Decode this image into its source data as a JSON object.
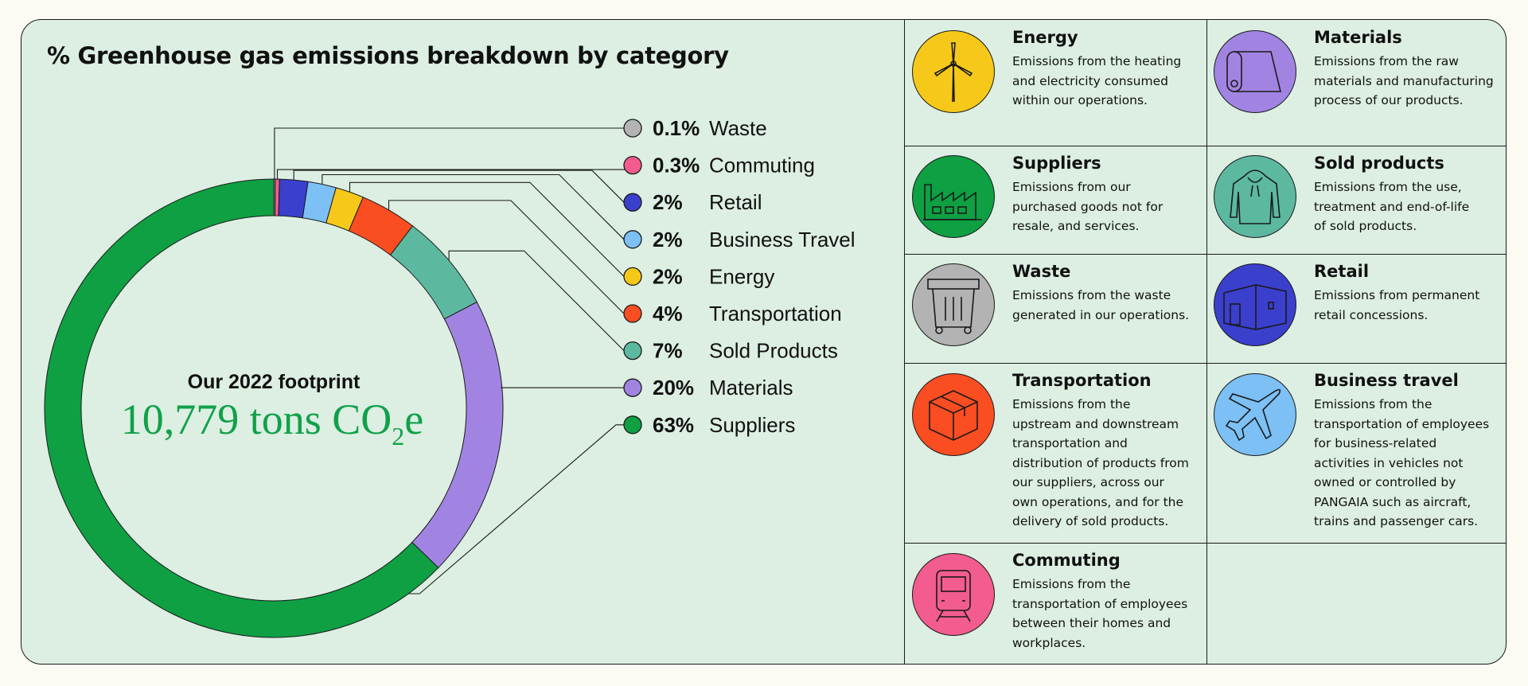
{
  "title": "% Greenhouse gas emissions breakdown by category",
  "center": {
    "label": "Our 2022 footprint",
    "value_main": "10,779 tons CO",
    "value_sub": "2",
    "value_end": "e"
  },
  "chart_data": {
    "type": "pie",
    "title": "% Greenhouse gas emissions breakdown by category",
    "donut": true,
    "slices": [
      {
        "name": "Waste",
        "value": 0.1,
        "label": "0.1%",
        "color": "#b3b3b3"
      },
      {
        "name": "Commuting",
        "value": 0.3,
        "label": "0.3%",
        "color": "#f25c8e"
      },
      {
        "name": "Retail",
        "value": 2,
        "label": "2%",
        "color": "#3a3fcc"
      },
      {
        "name": "Business Travel",
        "value": 2,
        "label": "2%",
        "color": "#7cc0f5"
      },
      {
        "name": "Energy",
        "value": 2,
        "label": "2%",
        "color": "#f6c81a"
      },
      {
        "name": "Transportation",
        "value": 4,
        "label": "4%",
        "color": "#fb4d22"
      },
      {
        "name": "Sold Products",
        "value": 7,
        "label": "7%",
        "color": "#5cb9a0"
      },
      {
        "name": "Materials",
        "value": 20,
        "label": "20%",
        "color": "#a184e2"
      },
      {
        "name": "Suppliers",
        "value": 63,
        "label": "63%",
        "color": "#0ea043"
      }
    ]
  },
  "categories": [
    {
      "title": "Energy",
      "desc": "Emissions from the heating\nand electricity consumed\nwithin our operations.",
      "icon": "wind-turbine-icon",
      "color": "#f6c81a"
    },
    {
      "title": "Materials",
      "desc": "Emissions from the raw\nmaterials and manufacturing\nprocess of our products.",
      "icon": "fabric-roll-icon",
      "color": "#a184e2"
    },
    {
      "title": "Suppliers",
      "desc": "Emissions from our\npurchased goods not for\nresale, and services.",
      "icon": "factory-icon",
      "color": "#0ea043"
    },
    {
      "title": "Sold products",
      "desc": "Emissions from the use,\ntreatment and end-of-life\nof sold products.",
      "icon": "hoodie-icon",
      "color": "#5cb9a0"
    },
    {
      "title": "Waste",
      "desc": "Emissions from the  waste\ngenerated in our operations.",
      "icon": "waste-bin-icon",
      "color": "#b3b3b3"
    },
    {
      "title": "Retail",
      "desc": "Emissions from permanent\nretail concessions.",
      "icon": "store-icon",
      "color": "#3a3fcc"
    },
    {
      "title": "Transportation",
      "desc": "Emissions from the\nupstream and downstream\ntransportation and\ndistribution of products from\nour suppliers, across our\nown operations, and for the\ndelivery of sold products.",
      "icon": "box-icon",
      "color": "#fb4d22"
    },
    {
      "title": "Business travel",
      "desc": "Emissions from the\ntransportation of employees\nfor business-related\nactivities in vehicles not\nowned or controlled by\nPANGAIA such as aircraft,\ntrains and passenger cars.",
      "icon": "airplane-icon",
      "color": "#7cc0f5"
    },
    {
      "title": "Commuting",
      "desc": "Emissions from the\ntransportation of employees\nbetween their homes and\nworkplaces.",
      "icon": "train-icon",
      "color": "#f25c8e"
    }
  ]
}
